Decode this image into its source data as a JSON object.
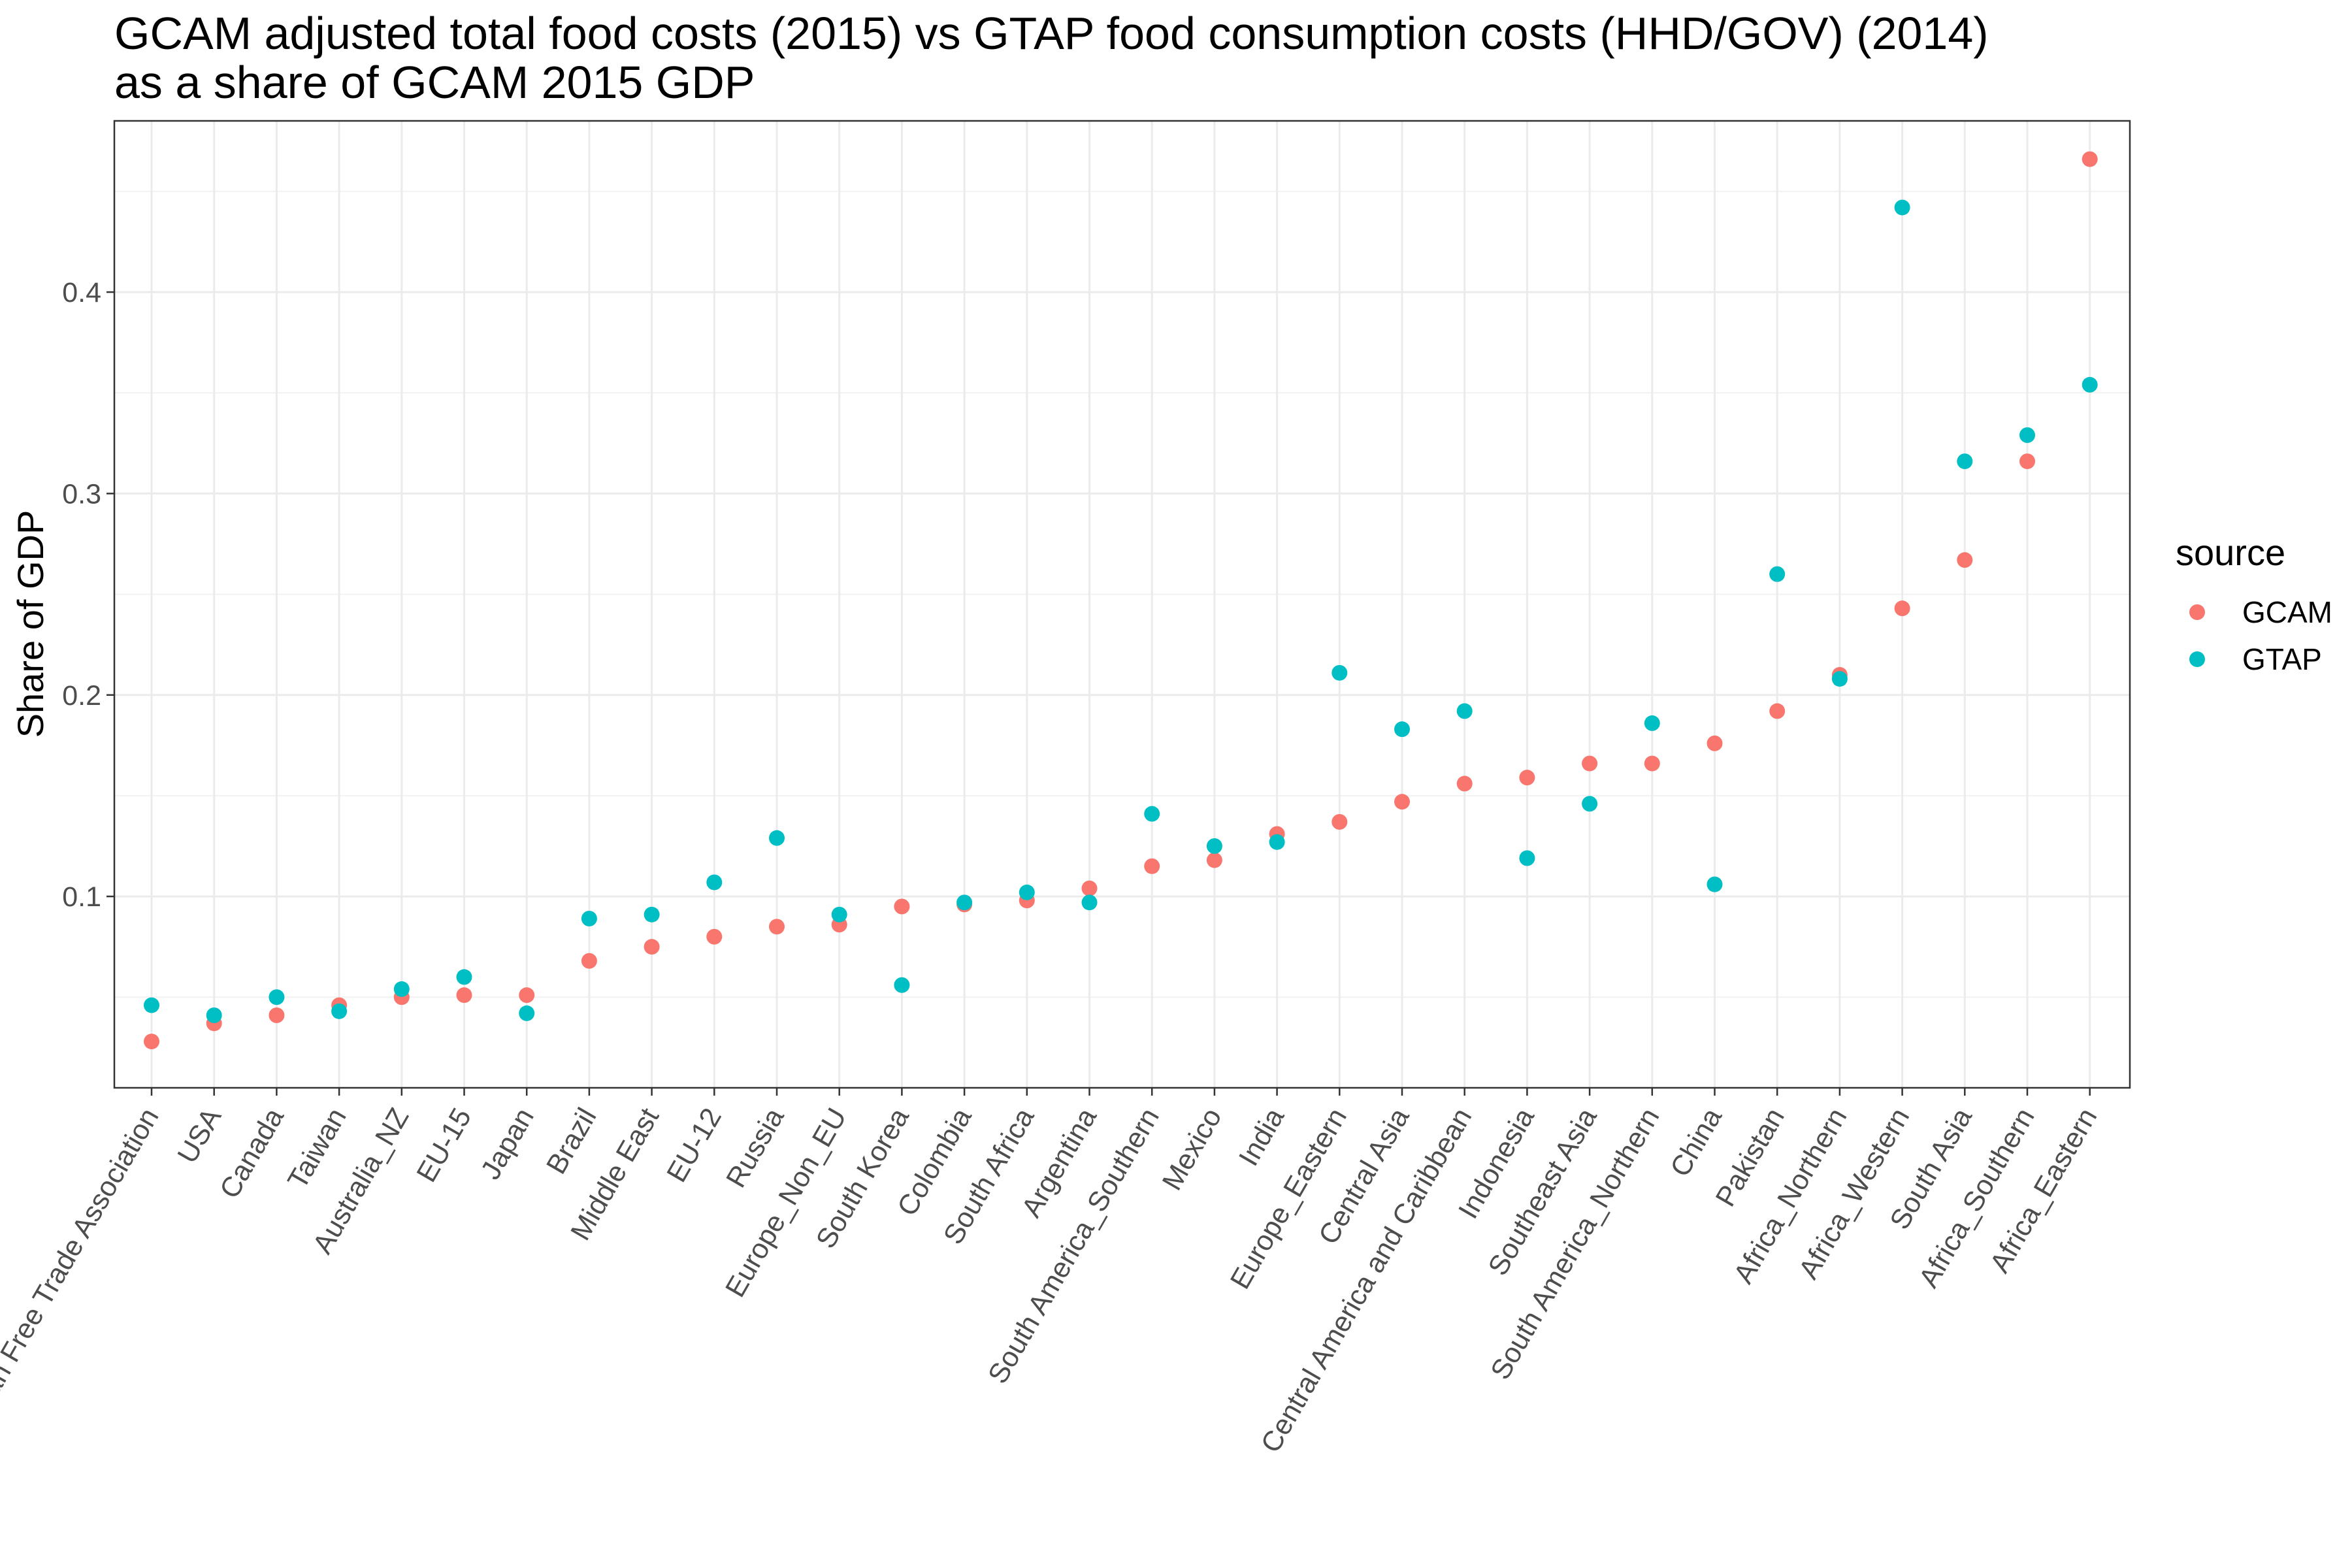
{
  "chart_data": {
    "type": "scatter",
    "title_lines": [
      "GCAM adjusted total food costs (2015) vs GTAP food consumption costs (HHD/GOV) (2014)",
      "as a share of GCAM 2015 GDP"
    ],
    "xlabel": "",
    "ylabel": "Share of GDP",
    "ylim": [
      0.005,
      0.485
    ],
    "y_ticks": [
      0.1,
      0.2,
      0.3,
      0.4
    ],
    "y_tick_labels": [
      "0.1",
      "0.2",
      "0.3",
      "0.4"
    ],
    "grid": true,
    "legend": {
      "title": "source",
      "position": "right"
    },
    "categories": [
      "European Free Trade Association",
      "USA",
      "Canada",
      "Taiwan",
      "Australia_NZ",
      "EU-15",
      "Japan",
      "Brazil",
      "Middle East",
      "EU-12",
      "Russia",
      "Europe_Non_EU",
      "South Korea",
      "Colombia",
      "South Africa",
      "Argentina",
      "South America_Southern",
      "Mexico",
      "India",
      "Europe_Eastern",
      "Central Asia",
      "Central America and Caribbean",
      "Indonesia",
      "Southeast Asia",
      "South America_Northern",
      "China",
      "Pakistan",
      "Africa_Northern",
      "Africa_Western",
      "South Asia",
      "Africa_Southern",
      "Africa_Eastern"
    ],
    "series": [
      {
        "name": "GCAM",
        "color": "#F8766D",
        "values": [
          0.028,
          0.037,
          0.041,
          0.046,
          0.05,
          0.051,
          0.051,
          0.068,
          0.075,
          0.08,
          0.085,
          0.086,
          0.095,
          0.096,
          0.098,
          0.104,
          0.115,
          0.118,
          0.131,
          0.137,
          0.147,
          0.156,
          0.159,
          0.166,
          0.166,
          0.176,
          0.192,
          0.21,
          0.243,
          0.267,
          0.316,
          0.466
        ]
      },
      {
        "name": "GTAP",
        "color": "#00BFC4",
        "values": [
          0.046,
          0.041,
          0.05,
          0.043,
          0.054,
          0.06,
          0.042,
          0.089,
          0.091,
          0.107,
          0.129,
          0.091,
          0.056,
          0.097,
          0.102,
          0.097,
          0.141,
          0.125,
          0.127,
          0.211,
          0.183,
          0.192,
          0.119,
          0.146,
          0.186,
          0.106,
          0.26,
          0.208,
          0.442,
          0.316,
          0.329,
          0.354
        ]
      }
    ]
  }
}
